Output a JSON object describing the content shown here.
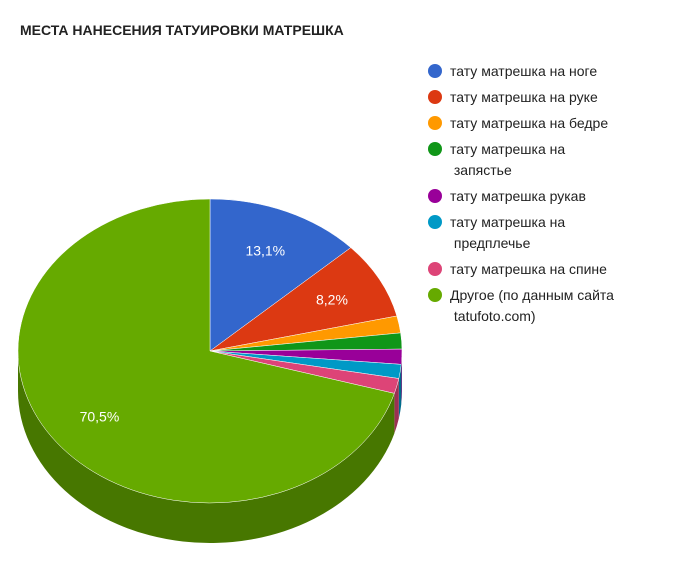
{
  "chart_data": {
    "type": "pie",
    "title": "МЕСТА НАНЕСЕНИЯ ТАТУИРОВКИ МАТРЕШКА",
    "categories": [
      "тату матрешка на ноге",
      "тату матрешка на руке",
      "тату матрешка на бедре",
      "тату матрешка на запястье",
      "тату матрешка рукав",
      "тату матрешка на предплечье",
      "тату матрешка на спине",
      "Другое (по данным сайта tatufoto.com)"
    ],
    "values": [
      13.1,
      8.2,
      1.8,
      1.7,
      1.6,
      1.5,
      1.6,
      70.5
    ],
    "value_labels": [
      "13,1%",
      "8,2%",
      null,
      null,
      null,
      null,
      null,
      "70,5%"
    ],
    "colors": [
      "#3366cc",
      "#dc3912",
      "#ff9900",
      "#109618",
      "#990099",
      "#0099c6",
      "#dd4477",
      "#66aa00"
    ],
    "legend": "right",
    "three_d": true
  }
}
